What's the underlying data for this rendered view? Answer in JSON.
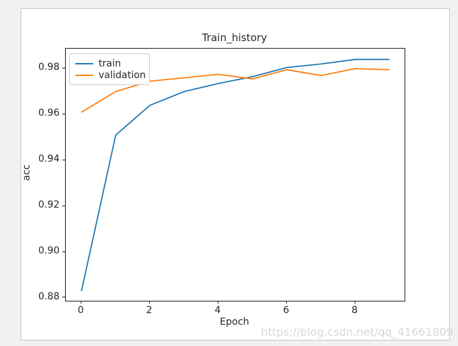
{
  "window": {
    "background": "#f1f1f1",
    "figure_background": "#ffffff"
  },
  "chart_data": {
    "type": "line",
    "title": "Train_history",
    "xlabel": "Epoch",
    "ylabel": "acc",
    "x": [
      0,
      1,
      2,
      3,
      4,
      5,
      6,
      7,
      8,
      9
    ],
    "series": [
      {
        "name": "train",
        "color": "#1f77b4",
        "values": [
          0.883,
          0.951,
          0.964,
          0.97,
          0.9735,
          0.9765,
          0.9805,
          0.982,
          0.984,
          0.984
        ]
      },
      {
        "name": "validation",
        "color": "#ff7f0e",
        "values": [
          0.961,
          0.97,
          0.9745,
          0.976,
          0.9775,
          0.9755,
          0.9795,
          0.977,
          0.98,
          0.9795
        ]
      }
    ],
    "xticks": [
      0,
      2,
      4,
      6,
      8
    ],
    "yticks": [
      0.88,
      0.9,
      0.92,
      0.94,
      0.96,
      0.98
    ],
    "xlim": [
      -0.46,
      9.44
    ],
    "ylim": [
      0.8788,
      0.9887
    ],
    "grid": false,
    "legend_position": "upper left"
  },
  "watermark": "https://blog.csdn.net/qq_41661809"
}
